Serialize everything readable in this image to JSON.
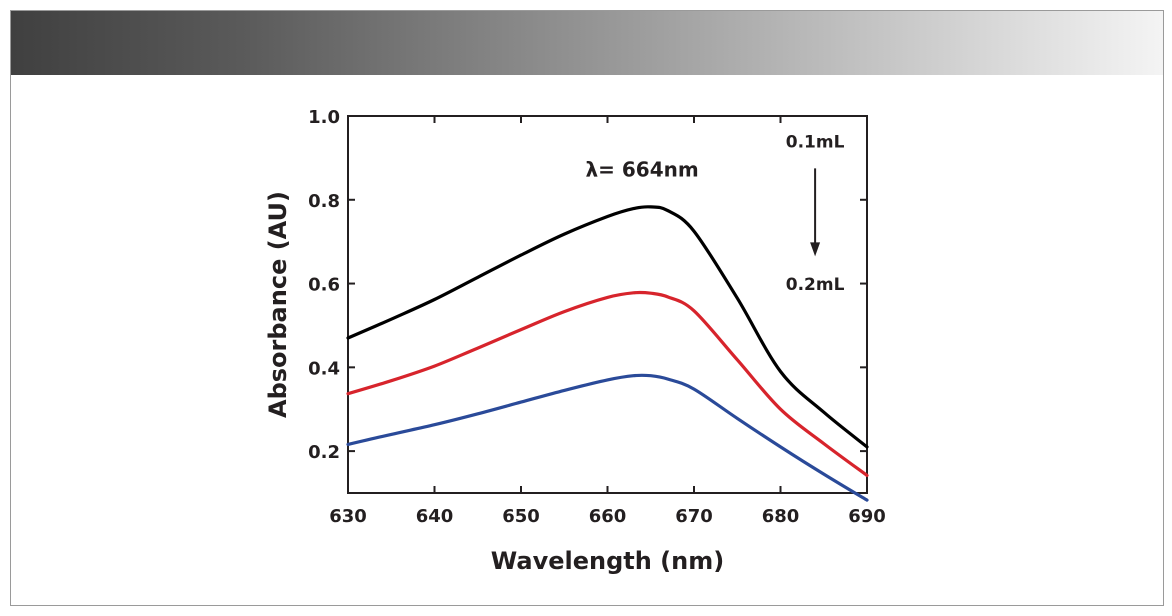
{
  "chart_data": {
    "type": "line",
    "title": "",
    "xlabel": "Wavelength (nm)",
    "ylabel": "Absorbance (AU)",
    "xlim": [
      630,
      690
    ],
    "ylim": [
      0.1,
      1.0
    ],
    "x_ticks": [
      630,
      640,
      650,
      660,
      670,
      680,
      690
    ],
    "x_tick_labels": [
      "630",
      "640",
      "650",
      "660",
      "670",
      "680",
      "690"
    ],
    "y_ticks": [
      0.2,
      0.4,
      0.6,
      0.8,
      1.0
    ],
    "y_tick_labels": [
      "0.2",
      "0.4",
      "0.6",
      "0.8",
      "1.0"
    ],
    "grid": false,
    "series": [
      {
        "name": "0.1mL",
        "color": "#000000",
        "x": [
          630,
          635,
          640,
          645,
          650,
          655,
          660,
          663,
          665,
          667,
          670,
          675,
          680,
          685,
          690
        ],
        "y": [
          0.47,
          0.515,
          0.562,
          0.615,
          0.668,
          0.718,
          0.76,
          0.779,
          0.783,
          0.774,
          0.725,
          0.565,
          0.39,
          0.293,
          0.21
        ]
      },
      {
        "name": "",
        "color": "#d7242c",
        "x": [
          630,
          635,
          640,
          645,
          650,
          655,
          660,
          663,
          665,
          667,
          670,
          675,
          680,
          685,
          690
        ],
        "y": [
          0.337,
          0.368,
          0.403,
          0.446,
          0.49,
          0.533,
          0.567,
          0.578,
          0.577,
          0.568,
          0.535,
          0.418,
          0.3,
          0.218,
          0.142
        ]
      },
      {
        "name": "0.2mL",
        "color": "#2a4a99",
        "x": [
          630,
          635,
          640,
          645,
          650,
          655,
          660,
          663,
          665,
          667,
          670,
          675,
          680,
          685,
          690
        ],
        "y": [
          0.216,
          0.24,
          0.263,
          0.289,
          0.317,
          0.345,
          0.37,
          0.38,
          0.38,
          0.372,
          0.348,
          0.278,
          0.21,
          0.145,
          0.083
        ]
      }
    ],
    "annotations": [
      {
        "text": "λ= 664nm",
        "x": 664,
        "y": 0.855
      },
      {
        "text": "0.1mL",
        "x": 684,
        "y": 0.925
      },
      {
        "text": "0.2mL",
        "x": 684,
        "y": 0.585
      }
    ],
    "arrow": {
      "from": [
        684,
        0.875
      ],
      "to": [
        684,
        0.665
      ],
      "color": "#231f20"
    }
  }
}
